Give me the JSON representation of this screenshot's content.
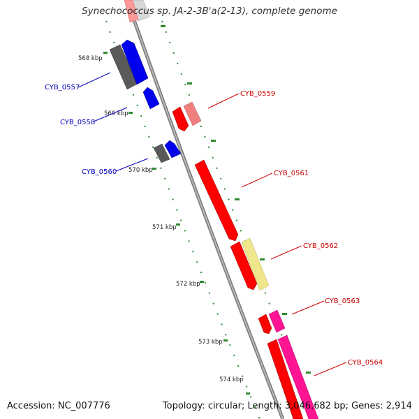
{
  "title": "Synechococcus sp. JA-2-3B'a(2-13), complete genome",
  "footer": {
    "accession": "Accession: NC_007776",
    "summary": "Topology: circular; Length: 3,046,682 bp; Genes: 2,914"
  },
  "colors": {
    "backbone": "#8c8c8c",
    "tick": "#2e8b2e",
    "label_red": "#cc0000",
    "label_blue": "#0000bb"
  },
  "kbp_labels": [
    "568 kbp",
    "569 kbp",
    "570 kbp",
    "571 kbp",
    "572 kbp",
    "573 kbp",
    "574 kbp"
  ],
  "gene_labels": [
    {
      "text": "CYB_0557",
      "color": "#0000bb"
    },
    {
      "text": "CYB_0558",
      "color": "#0000bb"
    },
    {
      "text": "CYB_0560",
      "color": "#0000bb"
    },
    {
      "text": "CYB_0559",
      "color": "#cc0000"
    },
    {
      "text": "CYB_0561",
      "color": "#cc0000"
    },
    {
      "text": "CYB_0562",
      "color": "#cc0000"
    },
    {
      "text": "CYB_0563",
      "color": "#cc0000"
    },
    {
      "text": "CYB_0564",
      "color": "#cc0000"
    }
  ]
}
